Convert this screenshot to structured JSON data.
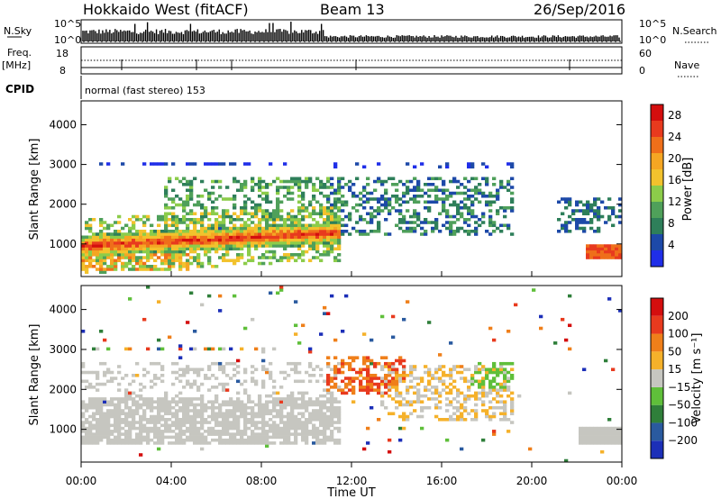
{
  "header": {
    "radar": "Hokkaido West (fitACF)",
    "beam": "Beam 13",
    "date": "26/Sep/2016"
  },
  "top_panels": {
    "nsky_label": "N.Sky",
    "nsky_ticks": [
      "10^5",
      "10^0"
    ],
    "nsearch_label": "N.Search",
    "nsearch_ticks": [
      "10^5",
      "10^0"
    ],
    "freq_label": "Freq.",
    "freq_unit": "[MHz]",
    "freq_ticks": [
      "18",
      "8"
    ],
    "nave_label": "Nave",
    "nave_ticks": [
      "60",
      "0"
    ],
    "cpid_label": "CPID",
    "cpid_text": "normal (fast stereo) 153"
  },
  "chart_data": [
    {
      "type": "heatmap",
      "name": "power",
      "ylabel": "Slant Range [km]",
      "yticks": [
        "1000",
        "2000",
        "3000",
        "4000"
      ],
      "ylim": [
        180,
        4600
      ],
      "colorbar_label": "Power [dB]",
      "colorbar_ticks": [
        "4",
        "8",
        "12",
        "16",
        "20",
        "24",
        "28"
      ],
      "colors": [
        "#1f2ee8",
        "#1d49a8",
        "#2e7f5a",
        "#4fa05a",
        "#8ccc4a",
        "#f2c22d",
        "#f5a623",
        "#ef6f1a",
        "#e83a1e",
        "#d40e0e"
      ]
    },
    {
      "type": "heatmap",
      "name": "velocity",
      "ylabel": "Slant Range [km]",
      "yticks": [
        "1000",
        "2000",
        "3000",
        "4000"
      ],
      "ylim": [
        180,
        4600
      ],
      "xlabel": "Time UT",
      "xticks": [
        "00:00",
        "04:00",
        "08:00",
        "12:00",
        "16:00",
        "20:00",
        "00:00"
      ],
      "colorbar_label": "Velocity [m s⁻¹]",
      "colorbar_ticks": [
        "200",
        "100",
        "50",
        "15",
        "−15",
        "−50",
        "−100",
        "−200"
      ],
      "colors": [
        "#1c2fb8",
        "#2a5a9f",
        "#2f7f3a",
        "#5fbf3a",
        "#c6c6c0",
        "#f5b12a",
        "#ef7f1a",
        "#e83a1e",
        "#d40e0e"
      ]
    }
  ]
}
